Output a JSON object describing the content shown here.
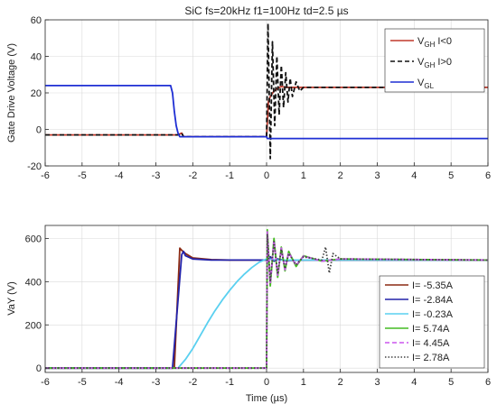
{
  "chart_data": [
    {
      "type": "line",
      "title": "SiC fs=20kHz f1=100Hz td=2.5 µs",
      "ylabel": "Gate Drive Voltage (V)",
      "xlabel": "",
      "xlim": [
        -6,
        6
      ],
      "ylim": [
        -20,
        60
      ],
      "xticks": [
        "-6",
        "-5",
        "-4",
        "-3",
        "-2",
        "-1",
        "0",
        "1",
        "2",
        "3",
        "4",
        "5",
        "6"
      ],
      "yticks": [
        "-20",
        "0",
        "20",
        "40",
        "60"
      ],
      "grid": true,
      "legend_position": "top-right",
      "series": [
        {
          "name": "V_GH I<0",
          "legend": {
            "base": "V",
            "sub": "GH",
            "suffix": " I<0"
          },
          "color": "#c0392b",
          "style": "solid",
          "x": [
            -6,
            -2.4,
            -2.3,
            -2.25,
            0,
            0.05,
            0.1,
            0.2,
            0.3,
            0.4,
            0.5,
            1,
            6
          ],
          "y": [
            -3,
            -3,
            -2,
            -4,
            -4,
            15,
            18,
            21,
            22.5,
            23.5,
            23,
            23,
            23
          ]
        },
        {
          "name": "V_GH I>0",
          "legend": {
            "base": "V",
            "sub": "GH",
            "suffix": " I>0"
          },
          "color": "#111111",
          "style": "dashed",
          "x": [
            -6,
            -2.4,
            -2.3,
            -2.25,
            0,
            0.04,
            0.1,
            0.16,
            0.22,
            0.28,
            0.34,
            0.4,
            0.46,
            0.52,
            0.58,
            0.64,
            0.7,
            0.8,
            0.9,
            1.0,
            6
          ],
          "y": [
            -3,
            -3,
            -2,
            -4,
            -4,
            58,
            -16,
            48,
            2,
            40,
            8,
            35,
            12,
            31,
            15,
            28,
            18,
            26,
            21,
            23,
            23
          ]
        },
        {
          "name": "V_GL",
          "legend": {
            "base": "V",
            "sub": "GL",
            "suffix": ""
          },
          "color": "#1f2fd4",
          "style": "solid",
          "x": [
            -6,
            -2.6,
            -2.55,
            -2.5,
            -2.45,
            -2.4,
            -2.35,
            0,
            0.02,
            6
          ],
          "y": [
            24,
            24,
            20,
            10,
            2,
            -2,
            -4,
            -4,
            -5,
            -5
          ]
        }
      ]
    },
    {
      "type": "line",
      "title": "",
      "ylabel": "VaY (V)",
      "xlabel": "Time (µs)",
      "xlim": [
        -6,
        6
      ],
      "ylim": [
        -20,
        660
      ],
      "xticks": [
        "-6",
        "-5",
        "-4",
        "-3",
        "-2",
        "-1",
        "0",
        "1",
        "2",
        "3",
        "4",
        "5",
        "6"
      ],
      "yticks": [
        "0",
        "200",
        "400",
        "600"
      ],
      "grid": true,
      "legend_position": "bottom-right",
      "series": [
        {
          "name": "I= -5.35A",
          "color": "#8b2a14",
          "style": "solid",
          "x": [
            -6,
            -2.5,
            -2.35,
            -2.3,
            -2.2,
            -2.0,
            -1.5,
            -1,
            0,
            0.1,
            0.2,
            0.3,
            0.5,
            1,
            6
          ],
          "y": [
            0,
            0,
            555,
            545,
            530,
            510,
            502,
            500,
            500,
            515,
            495,
            505,
            498,
            500,
            500
          ]
        },
        {
          "name": "I= -2.84A",
          "color": "#2222aa",
          "style": "solid",
          "x": [
            -6,
            -2.55,
            -2.3,
            -2.25,
            -2.2,
            -2.0,
            -1.5,
            -1,
            0,
            0.1,
            0.2,
            0.3,
            0.5,
            1,
            6
          ],
          "y": [
            0,
            0,
            525,
            540,
            520,
            505,
            500,
            500,
            500,
            515,
            495,
            505,
            498,
            500,
            500
          ]
        },
        {
          "name": "I= -0.23A",
          "color": "#5ad0f0",
          "style": "solid",
          "x": [
            -6,
            -2.4,
            -2.2,
            -2.0,
            -1.8,
            -1.6,
            -1.4,
            -1.2,
            -1.0,
            -0.8,
            -0.6,
            -0.4,
            -0.2,
            0,
            0.3,
            1,
            6
          ],
          "y": [
            0,
            0,
            40,
            90,
            150,
            210,
            265,
            315,
            360,
            400,
            435,
            465,
            490,
            505,
            500,
            500,
            500
          ]
        },
        {
          "name": "I= 5.74A",
          "color": "#44bb22",
          "style": "solid",
          "x": [
            -6,
            0,
            0.02,
            0.1,
            0.2,
            0.3,
            0.4,
            0.5,
            0.6,
            0.8,
            1.0,
            1.5,
            2,
            6
          ],
          "y": [
            0,
            0,
            640,
            380,
            600,
            420,
            560,
            450,
            540,
            470,
            520,
            495,
            505,
            500
          ]
        },
        {
          "name": "I= 4.45A",
          "color": "#cc55ee",
          "style": "dashed",
          "x": [
            -6,
            0,
            0.02,
            0.1,
            0.2,
            0.3,
            0.4,
            0.5,
            0.6,
            0.8,
            1.0,
            1.5,
            2,
            6
          ],
          "y": [
            0,
            0,
            630,
            390,
            590,
            430,
            555,
            455,
            535,
            475,
            518,
            495,
            505,
            500
          ]
        },
        {
          "name": "I= 2.78A",
          "color": "#444444",
          "style": "dotted",
          "x": [
            -6,
            0,
            0.02,
            0.1,
            0.2,
            0.3,
            0.4,
            0.5,
            0.6,
            0.8,
            1.0,
            1.5,
            1.6,
            1.7,
            1.8,
            2,
            6
          ],
          "y": [
            0,
            0,
            620,
            400,
            585,
            435,
            550,
            460,
            530,
            478,
            515,
            500,
            560,
            440,
            530,
            505,
            500
          ]
        }
      ]
    }
  ]
}
